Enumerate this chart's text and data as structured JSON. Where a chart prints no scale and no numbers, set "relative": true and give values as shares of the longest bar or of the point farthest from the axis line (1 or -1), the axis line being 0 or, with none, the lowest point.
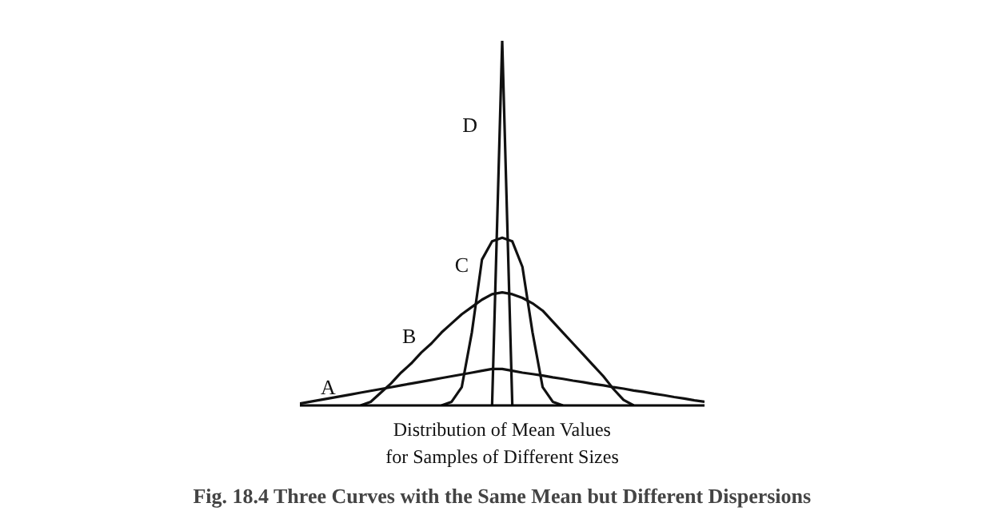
{
  "chart_data": {
    "type": "line",
    "relative": true,
    "title": "Fig. 18.4 Three Curves with the Same Mean but Different Dispersions",
    "xlabel": "Distribution of Mean Values\nfor Samples of Different Sizes",
    "grid": false,
    "legend": false,
    "marker": "none",
    "line_style": "solid",
    "categories": [
      null,
      null,
      null,
      null,
      null,
      null,
      null,
      null,
      null,
      null,
      null,
      null,
      null,
      null,
      null,
      null,
      null,
      null,
      null,
      null,
      null,
      null,
      null,
      null,
      null,
      null,
      null,
      null,
      null,
      null,
      null,
      null,
      null,
      null,
      null,
      null,
      null,
      null,
      null,
      null,
      null
    ],
    "series": [
      {
        "name": "A",
        "color": "#111111",
        "values": [
          0.005,
          0.01,
          0.015,
          0.02,
          0.025,
          0.03,
          0.035,
          0.04,
          0.045,
          0.05,
          0.055,
          0.06,
          0.065,
          0.07,
          0.075,
          0.08,
          0.085,
          0.09,
          0.095,
          0.1,
          0.1,
          0.095,
          0.09,
          0.086,
          0.082,
          0.077,
          0.073,
          0.068,
          0.064,
          0.059,
          0.055,
          0.05,
          0.046,
          0.041,
          0.037,
          0.032,
          0.028,
          0.023,
          0.019,
          0.014,
          0.01
        ]
      },
      {
        "name": "B",
        "color": "#111111",
        "values": [
          null,
          null,
          null,
          null,
          null,
          null,
          0,
          0.01,
          0.035,
          0.06,
          0.09,
          0.115,
          0.145,
          0.17,
          0.2,
          0.225,
          0.25,
          0.27,
          0.29,
          0.305,
          0.31,
          0.305,
          0.295,
          0.28,
          0.26,
          0.23,
          0.2,
          0.17,
          0.14,
          0.11,
          0.08,
          0.045,
          0.015,
          0,
          null,
          null,
          null,
          null,
          null,
          null,
          null
        ]
      },
      {
        "name": "C",
        "color": "#111111",
        "values": [
          null,
          null,
          null,
          null,
          null,
          null,
          null,
          null,
          null,
          null,
          null,
          null,
          null,
          null,
          0,
          0.01,
          0.05,
          0.2,
          0.4,
          0.45,
          0.46,
          0.45,
          0.38,
          0.2,
          0.05,
          0.01,
          0,
          null,
          null,
          null,
          null,
          null,
          null,
          null,
          null,
          null,
          null,
          null,
          null,
          null,
          null
        ]
      },
      {
        "name": "D",
        "color": "#111111",
        "values": [
          null,
          null,
          null,
          null,
          null,
          null,
          null,
          null,
          null,
          null,
          null,
          null,
          null,
          null,
          null,
          null,
          null,
          null,
          null,
          0,
          1,
          0,
          null,
          null,
          null,
          null,
          null,
          null,
          null,
          null,
          null,
          null,
          null,
          null,
          null,
          null,
          null,
          null,
          null,
          null,
          null
        ]
      }
    ]
  }
}
